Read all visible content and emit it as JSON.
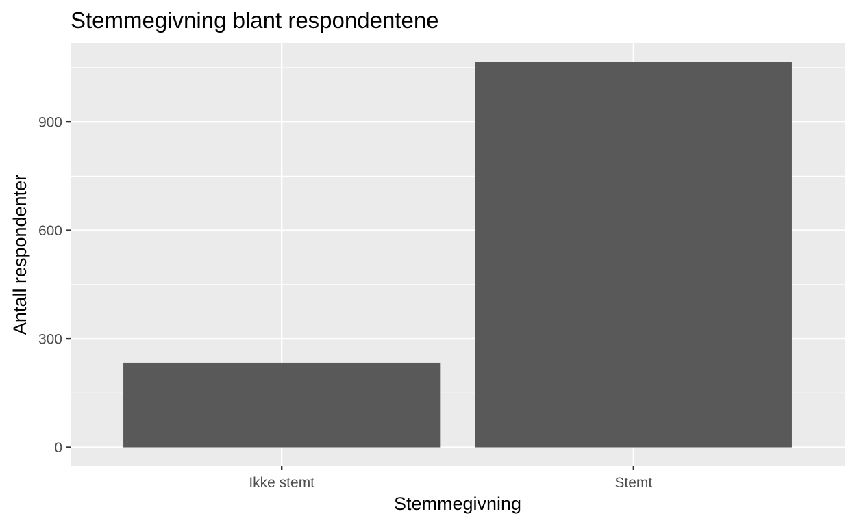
{
  "chart_data": {
    "type": "bar",
    "title": "Stemmegivning blant respondentene",
    "xlabel": "Stemmegivning",
    "ylabel": "Antall respondenter",
    "categories": [
      "Ikke stemt",
      "Stemt"
    ],
    "values": [
      234,
      1066
    ],
    "ylim": [
      -52,
      1118
    ],
    "yticks": [
      0,
      300,
      600,
      900
    ],
    "grid": true,
    "colors": {
      "bar": "#595959",
      "panel": "#ebebeb",
      "grid": "#ffffff",
      "tick": "#333333",
      "tick_label": "#4d4d4d",
      "text": "#000000"
    }
  }
}
